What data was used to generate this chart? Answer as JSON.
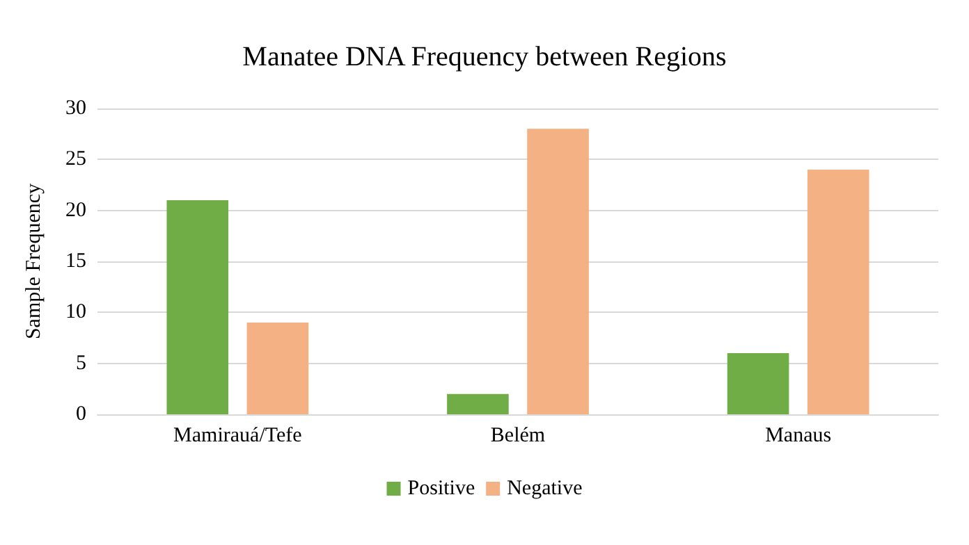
{
  "chart_data": {
    "type": "bar",
    "title": "Manatee DNA Frequency between Regions",
    "ylabel": "Sample Frequency",
    "categories": [
      "Mamirauá/Tefe",
      "Belém",
      "Manaus"
    ],
    "series": [
      {
        "name": "Positive",
        "color": "#70ad47",
        "values": [
          21,
          2,
          6
        ]
      },
      {
        "name": "Negative",
        "color": "#f4b183",
        "values": [
          9,
          28,
          24
        ]
      }
    ],
    "ylim": [
      0,
      30
    ],
    "yticks": [
      0,
      5,
      10,
      15,
      20,
      25,
      30
    ],
    "grid": "y",
    "legend": "bottom"
  }
}
